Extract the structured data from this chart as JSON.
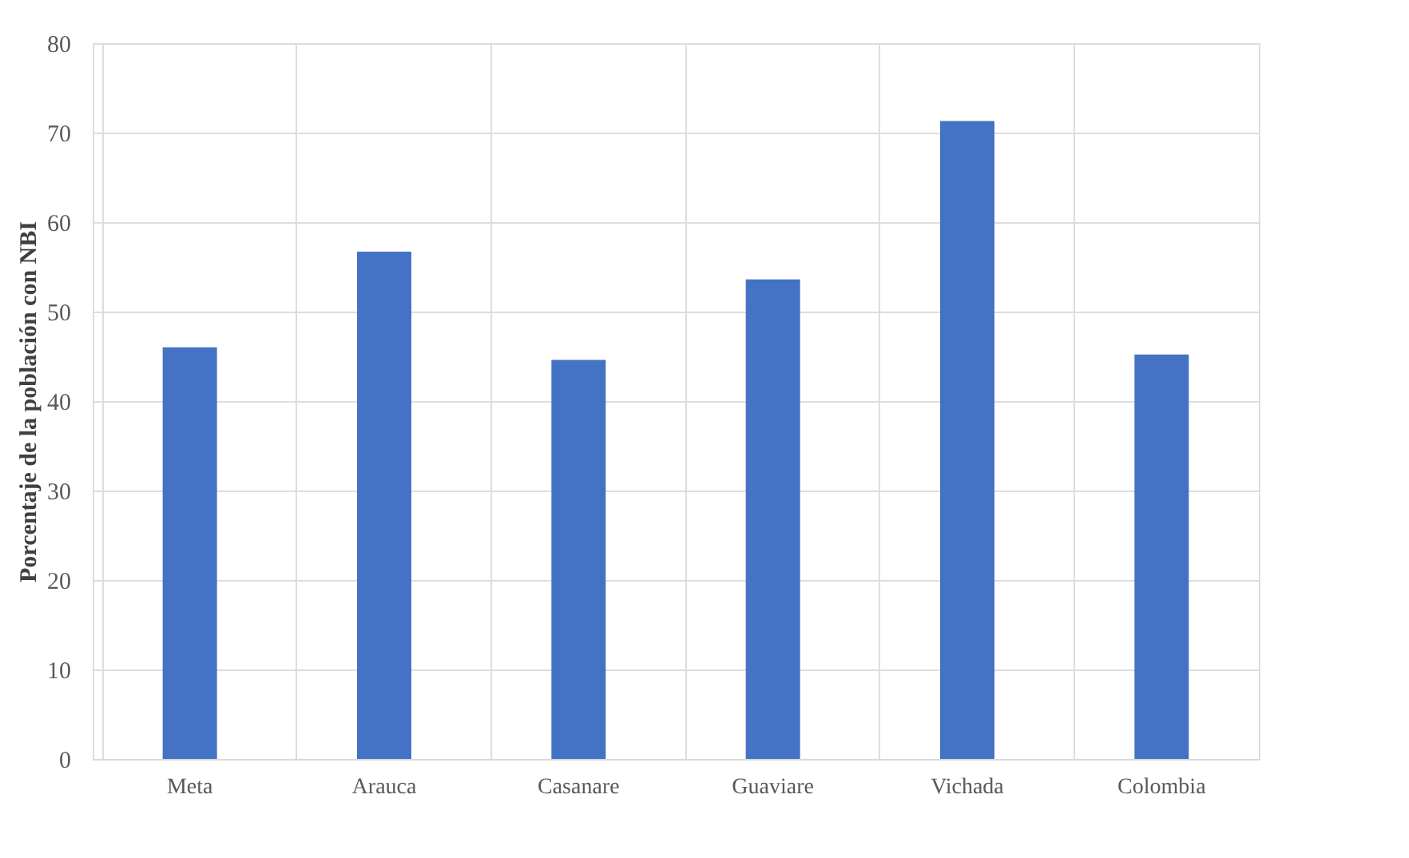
{
  "chart_data": {
    "type": "bar",
    "ylabel": "Porcentaje de la población con NBI",
    "categories": [
      "Meta",
      "Arauca",
      "Casanare",
      "Guaviare",
      "Vichada",
      "Colombia"
    ],
    "values": [
      46.0,
      56.7,
      44.6,
      53.6,
      71.3,
      45.2
    ],
    "color": "#4472c4",
    "ylim": [
      0,
      80
    ],
    "yticks": [
      0,
      10,
      20,
      30,
      40,
      50,
      60,
      70,
      80
    ],
    "grid": true
  }
}
